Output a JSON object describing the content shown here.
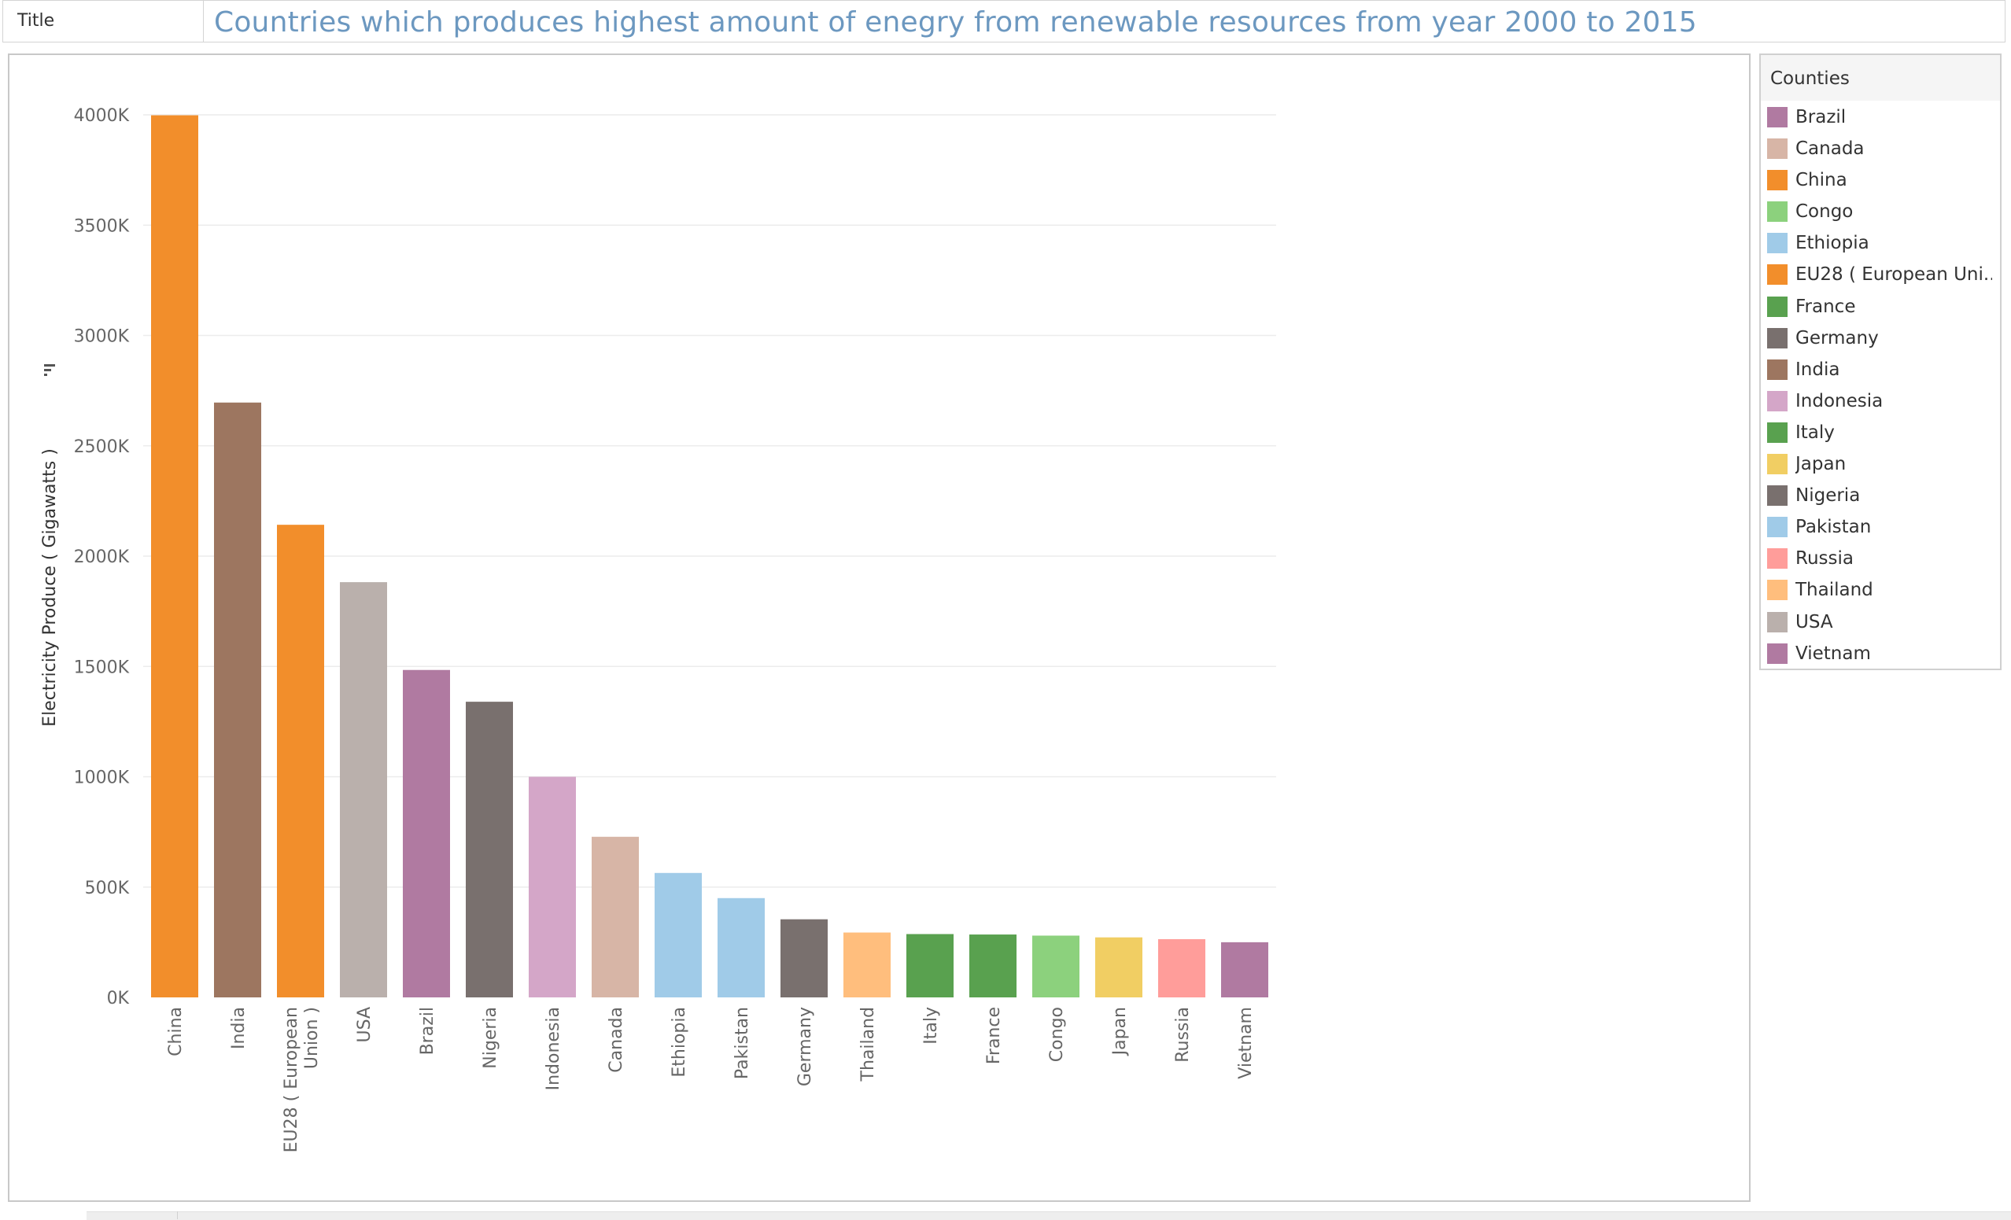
{
  "title_bar": {
    "caption": "Title",
    "text": "Countries which produces highest amount  of enegry from renewable resources from year 2000 to 2015"
  },
  "legend": {
    "title": "Counties",
    "items": [
      {
        "label": "Brazil",
        "color": "#b07aa1"
      },
      {
        "label": "Canada",
        "color": "#d7b5a6"
      },
      {
        "label": "China",
        "color": "#f28e2b"
      },
      {
        "label": "Congo",
        "color": "#8cd17d"
      },
      {
        "label": "Ethiopia",
        "color": "#a0cbe8"
      },
      {
        "label": "EU28 ( European Uni..",
        "color": "#f28e2b"
      },
      {
        "label": "France",
        "color": "#59a14f"
      },
      {
        "label": "Germany",
        "color": "#79706e"
      },
      {
        "label": "India",
        "color": "#9d7660"
      },
      {
        "label": "Indonesia",
        "color": "#d4a6c8"
      },
      {
        "label": "Italy",
        "color": "#59a14f"
      },
      {
        "label": "Japan",
        "color": "#f1ce63"
      },
      {
        "label": "Nigeria",
        "color": "#79706e"
      },
      {
        "label": "Pakistan",
        "color": "#a0cbe8"
      },
      {
        "label": "Russia",
        "color": "#ff9d9a"
      },
      {
        "label": "Thailand",
        "color": "#ffbe7d"
      },
      {
        "label": "USA",
        "color": "#bab0ac"
      },
      {
        "label": "Vietnam",
        "color": "#b07aa1"
      }
    ]
  },
  "chart_data": {
    "type": "bar",
    "title": "",
    "xlabel": "",
    "ylabel": "Electricity Produce ( Gigawatts )",
    "ylim": [
      0,
      4000000
    ],
    "yticks": [
      0,
      500000,
      1000000,
      1500000,
      2000000,
      2500000,
      3000000,
      3500000,
      4000000
    ],
    "ytick_labels": [
      "0K",
      "500K",
      "1000K",
      "1500K",
      "2000K",
      "2500K",
      "3000K",
      "3500K",
      "4000K"
    ],
    "grid": true,
    "legend_position": "right",
    "categories": [
      "China",
      "India",
      "EU28 ( European Union )",
      "USA",
      "Brazil",
      "Nigeria",
      "Indonesia",
      "Canada",
      "Ethiopia",
      "Pakistan",
      "Germany",
      "Thailand",
      "Italy",
      "France",
      "Congo",
      "Japan",
      "Russia",
      "Vietnam"
    ],
    "category_lines": [
      [
        "China"
      ],
      [
        "India"
      ],
      [
        "EU28 ( European",
        "Union )"
      ],
      [
        "USA"
      ],
      [
        "Brazil"
      ],
      [
        "Nigeria"
      ],
      [
        "Indonesia"
      ],
      [
        "Canada"
      ],
      [
        "Ethiopia"
      ],
      [
        "Pakistan"
      ],
      [
        "Germany"
      ],
      [
        "Thailand"
      ],
      [
        "Italy"
      ],
      [
        "France"
      ],
      [
        "Congo"
      ],
      [
        "Japan"
      ],
      [
        "Russia"
      ],
      [
        "Vietnam"
      ]
    ],
    "values": [
      3998000,
      2696000,
      2142000,
      1882000,
      1484000,
      1340000,
      1000000,
      728000,
      564000,
      450000,
      354000,
      294000,
      287000,
      285000,
      280000,
      272000,
      264000,
      250000
    ],
    "colors": [
      "#f28e2b",
      "#9d7660",
      "#f28e2b",
      "#bab0ac",
      "#b07aa1",
      "#79706e",
      "#d4a6c8",
      "#d7b5a6",
      "#a0cbe8",
      "#a0cbe8",
      "#79706e",
      "#ffbe7d",
      "#59a14f",
      "#59a14f",
      "#8cd17d",
      "#f1ce63",
      "#ff9d9a",
      "#b07aa1"
    ]
  }
}
